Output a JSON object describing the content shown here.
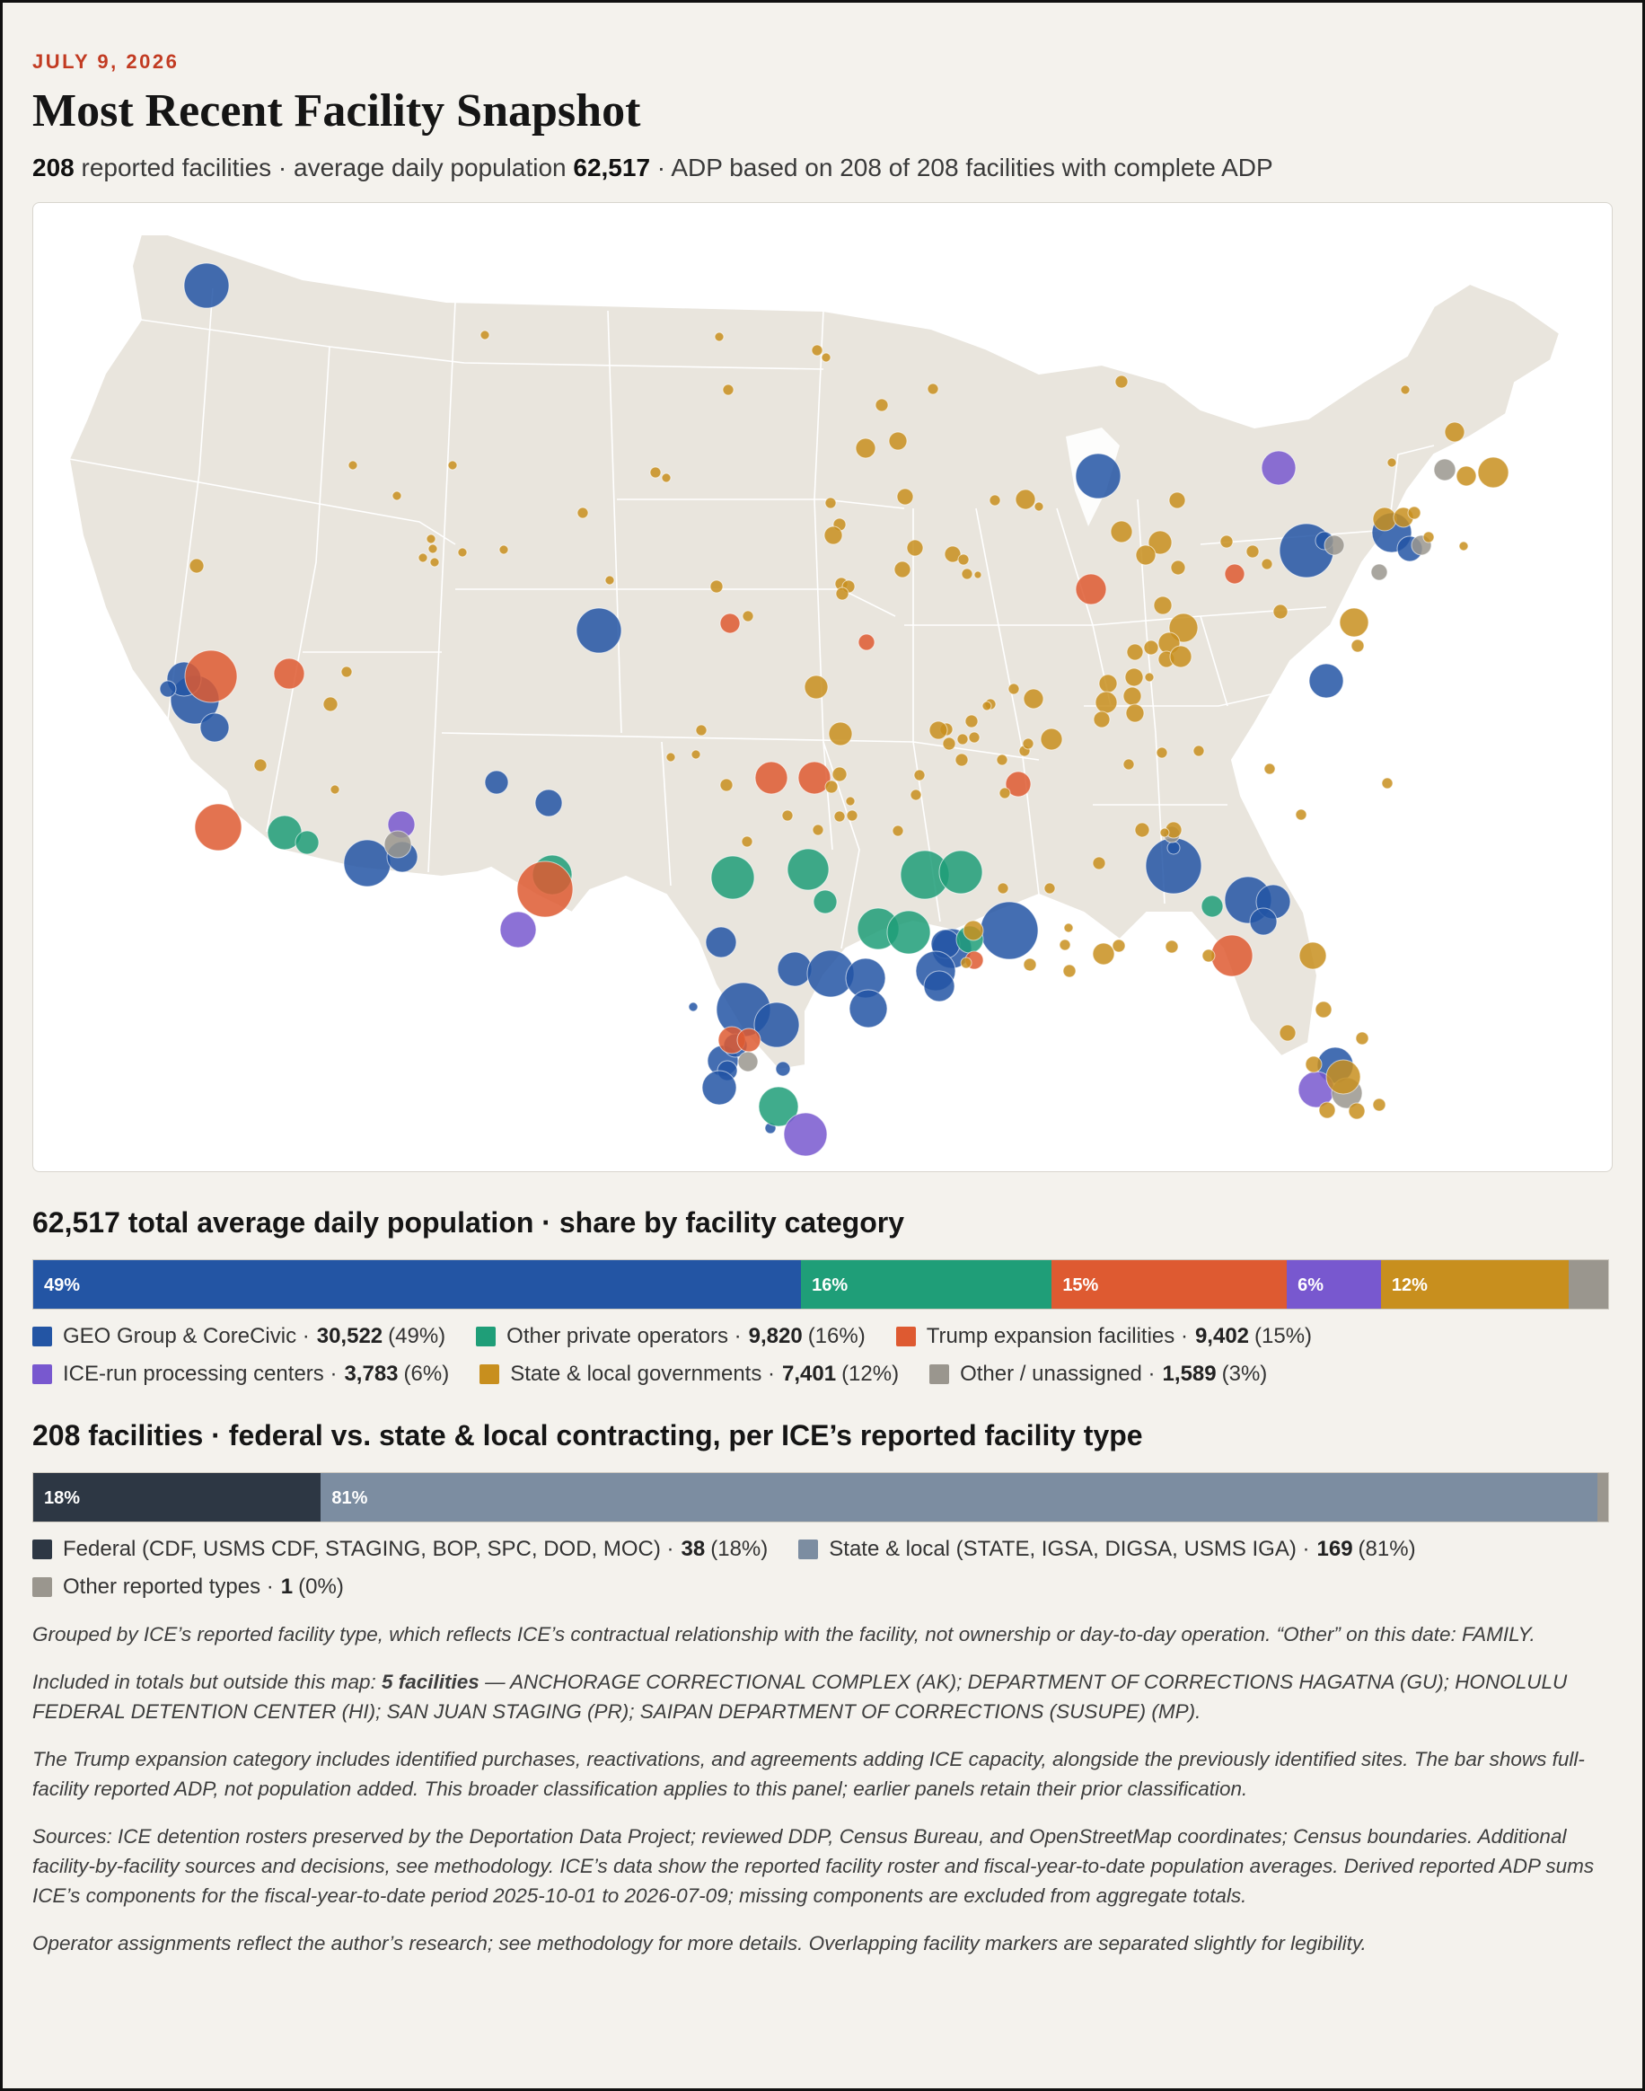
{
  "header": {
    "date": "JULY 9, 2026",
    "title": "Most Recent Facility Snapshot",
    "facilities_count": "208",
    "facilities_text": "reported facilities · average daily population",
    "adp": "62,517",
    "adp_note": "· ADP based on 208 of 208 facilities with complete ADP"
  },
  "colors": {
    "geo": "#2355a4",
    "private": "#1f9e78",
    "trump": "#de5a31",
    "ice": "#7858cf",
    "state": "#c88f1e",
    "other": "#9a968e",
    "federal": "#2d3744",
    "statelocal": "#7c8da1"
  },
  "category_section": {
    "heading": "62,517 total average daily population · share by facility category",
    "segments": [
      {
        "key": "geo",
        "pct": 49,
        "label": "49%"
      },
      {
        "key": "private",
        "pct": 16,
        "label": "16%"
      },
      {
        "key": "trump",
        "pct": 15,
        "label": "15%"
      },
      {
        "key": "ice",
        "pct": 6,
        "label": "6%"
      },
      {
        "key": "state",
        "pct": 12,
        "label": "12%"
      },
      {
        "key": "other",
        "pct": 2.5,
        "label": ""
      }
    ],
    "legend": [
      {
        "key": "geo",
        "name": "GEO Group & CoreCivic ·",
        "value": "30,522",
        "pct": "(49%)"
      },
      {
        "key": "private",
        "name": "Other private operators ·",
        "value": "9,820",
        "pct": "(16%)"
      },
      {
        "key": "trump",
        "name": "Trump expansion facilities ·",
        "value": "9,402",
        "pct": "(15%)"
      },
      {
        "key": "ice",
        "name": "ICE-run processing centers ·",
        "value": "3,783",
        "pct": "(6%)"
      },
      {
        "key": "state",
        "name": "State & local governments ·",
        "value": "7,401",
        "pct": "(12%)"
      },
      {
        "key": "other",
        "name": "Other / unassigned ·",
        "value": "1,589",
        "pct": "(3%)"
      }
    ]
  },
  "contract_section": {
    "heading": "208 facilities · federal vs. state & local contracting, per ICE’s reported facility type",
    "segments": [
      {
        "key": "federal",
        "pct": 18.3,
        "label": "18%"
      },
      {
        "key": "statelocal",
        "pct": 81.2,
        "label": "81%"
      },
      {
        "key": "other",
        "pct": 0.5,
        "label": ""
      }
    ],
    "legend": [
      {
        "key": "federal",
        "name": "Federal (CDF, USMS CDF, STAGING, BOP, SPC, DOD, MOC) ·",
        "value": "38",
        "pct": "(18%)"
      },
      {
        "key": "statelocal",
        "name": "State & local (STATE, IGSA, DIGSA, USMS IGA) ·",
        "value": "169",
        "pct": "(81%)"
      },
      {
        "key": "other",
        "name": "Other reported types ·",
        "value": "1",
        "pct": "(0%)"
      }
    ]
  },
  "notes": {
    "grouping": "Grouped by ICE’s reported facility type, which reflects ICE’s contractual relationship with the facility, not ownership or day-to-day operation. “Other” on this date: FAMILY.",
    "outside_prefix": "Included in totals but outside this map:",
    "outside_count": "5 facilities",
    "outside_list": "— ANCHORAGE CORRECTIONAL COMPLEX (AK); DEPARTMENT OF CORRECTIONS HAGATNA (GU); HONOLULU FEDERAL DETENTION CENTER (HI); SAN JUAN STAGING (PR); SAIPAN DEPARTMENT OF CORRECTIONS (SUSUPE) (MP).",
    "trump": "The Trump expansion category includes identified purchases, reactivations, and agreements adding ICE capacity, alongside the previously identified sites. The bar shows full-facility reported ADP, not population added. This broader classification applies to this panel; earlier panels retain their prior classification.",
    "sources": "Sources: ICE detention rosters preserved by the Deportation Data Project; reviewed DDP, Census Bureau, and OpenStreetMap coordinates; Census boundaries. Additional facility-by-facility sources and decisions, see methodology. ICE’s data show the reported facility roster and fiscal-year-to-date population averages. Derived reported ADP sums ICE’s components for the fiscal-year-to-date period 2025-10-01 to 2026-07-09; missing components are excluded from aggregate totals.",
    "operator": "Operator assignments reflect the author’s research; see methodology for more details. Overlapping facility markers are separated slightly for legibility."
  }
}
